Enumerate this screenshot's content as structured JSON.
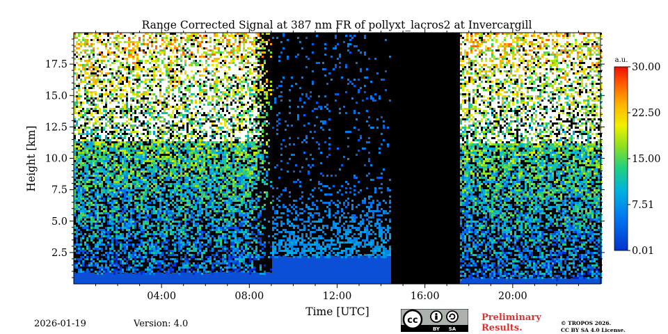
{
  "chart_data": {
    "type": "heatmap",
    "title": "Range Corrected Signal at 387 nm FR of pollyxt_lacros2 at Invercargill",
    "xlabel": "Time [UTC]",
    "ylabel": "Height [km]",
    "xlim": [
      0,
      24
    ],
    "ylim": [
      0,
      20
    ],
    "x_ticks": [
      {
        "value": 4,
        "label": "04:00"
      },
      {
        "value": 8,
        "label": "08:00"
      },
      {
        "value": 12,
        "label": "12:00"
      },
      {
        "value": 16,
        "label": "16:00"
      },
      {
        "value": 20,
        "label": "20:00"
      }
    ],
    "y_ticks": [
      {
        "value": 2.5,
        "label": "2.5"
      },
      {
        "value": 5.0,
        "label": "5.0"
      },
      {
        "value": 7.5,
        "label": "7.5"
      },
      {
        "value": 10.0,
        "label": "10.0"
      },
      {
        "value": 12.5,
        "label": "12.5"
      },
      {
        "value": 15.0,
        "label": "15.0"
      },
      {
        "value": 17.5,
        "label": "17.5"
      }
    ],
    "colorbar": {
      "unit": "a.u.",
      "range": [
        0.01,
        30.0
      ],
      "ticks": [
        {
          "value": 0.01,
          "label": "0.01"
        },
        {
          "value": 7.51,
          "label": "7.51"
        },
        {
          "value": 15.0,
          "label": "15.00"
        },
        {
          "value": 22.5,
          "label": "22.50"
        },
        {
          "value": 30.0,
          "label": "30.00"
        }
      ]
    },
    "segments": [
      {
        "t_start": 0.0,
        "t_end": 9.0,
        "kind": "noisy-daytime",
        "boundary_layer_km": 0.9
      },
      {
        "t_start": 9.0,
        "t_end": 14.5,
        "kind": "low-signal",
        "boundary_layer_km": 2.2
      },
      {
        "t_start": 14.5,
        "t_end": 17.55,
        "kind": "no-data"
      },
      {
        "t_start": 17.55,
        "t_end": 24.0,
        "kind": "noisy-evening",
        "boundary_layer_km": 0.45
      }
    ]
  },
  "footer": {
    "date": "2026-01-19",
    "version": "Version: 4.0",
    "preliminary": [
      "Preliminary",
      "Results."
    ],
    "copyright": [
      "© TROPOS 2026.",
      "CC BY SA 4.0 License."
    ],
    "license_badge": {
      "cc": "cc",
      "by": "BY",
      "sa": "SA"
    }
  }
}
